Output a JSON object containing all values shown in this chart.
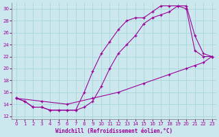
{
  "bg_color": "#cce8ee",
  "line_color": "#990099",
  "grid_color": "#aad8dc",
  "xlabel": "Windchill (Refroidissement éolien,°C)",
  "xlim": [
    -0.5,
    23.5
  ],
  "ylim": [
    11.5,
    31
  ],
  "xticks": [
    0,
    1,
    2,
    3,
    4,
    5,
    6,
    7,
    8,
    9,
    10,
    11,
    12,
    13,
    14,
    15,
    16,
    17,
    18,
    19,
    20,
    21,
    22,
    23
  ],
  "yticks": [
    12,
    14,
    16,
    18,
    20,
    22,
    24,
    26,
    28,
    30
  ],
  "curve1_x": [
    0,
    1,
    2,
    3,
    4,
    5,
    6,
    7,
    8,
    9,
    10,
    11,
    12,
    13,
    14,
    15,
    16,
    17,
    18,
    19,
    20,
    21,
    22,
    23
  ],
  "curve1_y": [
    15,
    14.5,
    13.5,
    13.5,
    13,
    13,
    13,
    13,
    13.5,
    14.5,
    17,
    20,
    22.5,
    24.0,
    25.5,
    27.5,
    28.5,
    29,
    29.5,
    30.5,
    30.5,
    25.5,
    22.5,
    22
  ],
  "curve2_x": [
    0,
    1,
    2,
    3,
    4,
    5,
    6,
    7,
    8,
    9,
    10,
    11,
    12,
    13,
    14,
    15,
    16,
    17,
    18,
    19,
    20,
    21,
    22,
    23
  ],
  "curve2_y": [
    15,
    14.5,
    13.5,
    13.5,
    13,
    13,
    13,
    13,
    16,
    19.5,
    22.5,
    24.5,
    26.5,
    28,
    28.5,
    28.5,
    29.5,
    30.5,
    30.5,
    30.5,
    30,
    23,
    22,
    22
  ],
  "curve3_x": [
    0,
    3,
    6,
    9,
    12,
    15,
    18,
    20,
    21,
    22,
    23
  ],
  "curve3_y": [
    15,
    14.5,
    14,
    15,
    16,
    17.5,
    19,
    20,
    20.5,
    21,
    22
  ]
}
